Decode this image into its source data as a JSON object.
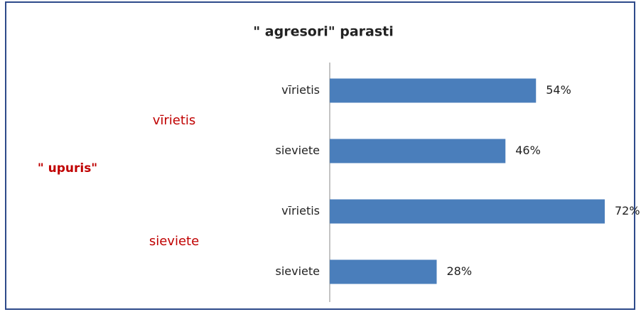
{
  "chart_data": {
    "type": "bar",
    "orientation": "horizontal",
    "title": "\" agresori\" parasti",
    "ylabel": "\" upuris\"",
    "groups": [
      "vīrietis",
      "sieviete"
    ],
    "categories": [
      "vīrietis",
      "sieviete",
      "vīrietis",
      "sieviete"
    ],
    "values": [
      54,
      46,
      72,
      28
    ],
    "value_labels": [
      "54%",
      "46%",
      "72%",
      "28%"
    ],
    "color": "#4a7ebb",
    "xlim": [
      0,
      80
    ]
  }
}
